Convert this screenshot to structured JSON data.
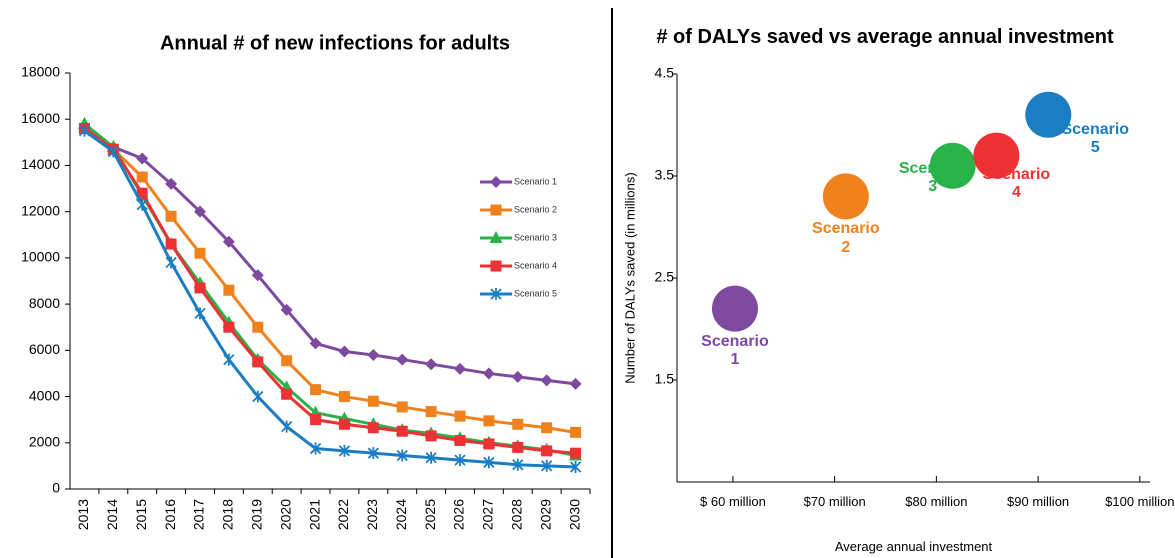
{
  "chart_data": [
    {
      "type": "line",
      "title": "Annual # of new infections for adults",
      "categories": [
        "2013",
        "2014",
        "2015",
        "2016",
        "2017",
        "2018",
        "2019",
        "2020",
        "2021",
        "2022",
        "2023",
        "2024",
        "2025",
        "2026",
        "2027",
        "2028",
        "2029",
        "2030"
      ],
      "ylim": [
        0,
        18000
      ],
      "yticks": [
        0,
        2000,
        4000,
        6000,
        8000,
        10000,
        12000,
        14000,
        16000,
        18000
      ],
      "series": [
        {
          "name": "Scenario 1",
          "color": "#7e4aa0",
          "marker": "diamond",
          "values": [
            15600,
            14800,
            14300,
            13200,
            12000,
            10700,
            9250,
            7750,
            6300,
            5950,
            5800,
            5600,
            5400,
            5200,
            5000,
            4850,
            4700,
            4550
          ]
        },
        {
          "name": "Scenario 2",
          "color": "#f0821e",
          "marker": "square",
          "values": [
            15600,
            14700,
            13500,
            11800,
            10200,
            8600,
            7000,
            5550,
            4300,
            4000,
            3800,
            3550,
            3350,
            3150,
            2950,
            2800,
            2650,
            2450
          ]
        },
        {
          "name": "Scenario 3",
          "color": "#2ab24b",
          "marker": "triangle",
          "values": [
            15800,
            14800,
            12700,
            10600,
            8900,
            7200,
            5600,
            4400,
            3300,
            3050,
            2800,
            2550,
            2400,
            2200,
            2000,
            1850,
            1700,
            1450
          ]
        },
        {
          "name": "Scenario 4",
          "color": "#ee3134",
          "marker": "square",
          "values": [
            15600,
            14700,
            12800,
            10600,
            8700,
            7000,
            5500,
            4100,
            3000,
            2800,
            2650,
            2500,
            2300,
            2100,
            1950,
            1800,
            1650,
            1550
          ]
        },
        {
          "name": "Scenario 5",
          "color": "#1b7dc2",
          "marker": "cross",
          "values": [
            15500,
            14600,
            12300,
            9800,
            7600,
            5600,
            4000,
            2700,
            1750,
            1650,
            1550,
            1450,
            1350,
            1250,
            1150,
            1050,
            1000,
            950
          ]
        }
      ]
    },
    {
      "type": "scatter",
      "title": "# of DALYs saved vs average  annual investment",
      "x_label": "Average annual investment",
      "y_label": "Number of DALYs saved (in millions)",
      "xlim": [
        54.5,
        101
      ],
      "xticks": [
        {
          "value": 60,
          "label": "$ 60 million"
        },
        {
          "value": 70,
          "label": "$70 million"
        },
        {
          "value": 80,
          "label": "$80 million"
        },
        {
          "value": 90,
          "label": "$90 million"
        },
        {
          "value": 100,
          "label": "$100 million"
        }
      ],
      "ylim": [
        0.5,
        4.5
      ],
      "yticks": [
        1.5,
        2.5,
        3.5,
        4.5
      ],
      "points": [
        {
          "name": "Scenario 1",
          "color": "#7e4aa0",
          "x": 60.2,
          "y": 2.2
        },
        {
          "name": "Scenario 2",
          "color": "#f0821e",
          "x": 71.1,
          "y": 3.3
        },
        {
          "name": "Scenario 3",
          "color": "#2ab24b",
          "x": 81.6,
          "y": 3.6
        },
        {
          "name": "Scenario 4",
          "color": "#ee3134",
          "x": 85.9,
          "y": 3.7
        },
        {
          "name": "Scenario 5",
          "color": "#1b7dc2",
          "x": 91,
          "y": 4.1
        }
      ]
    }
  ]
}
